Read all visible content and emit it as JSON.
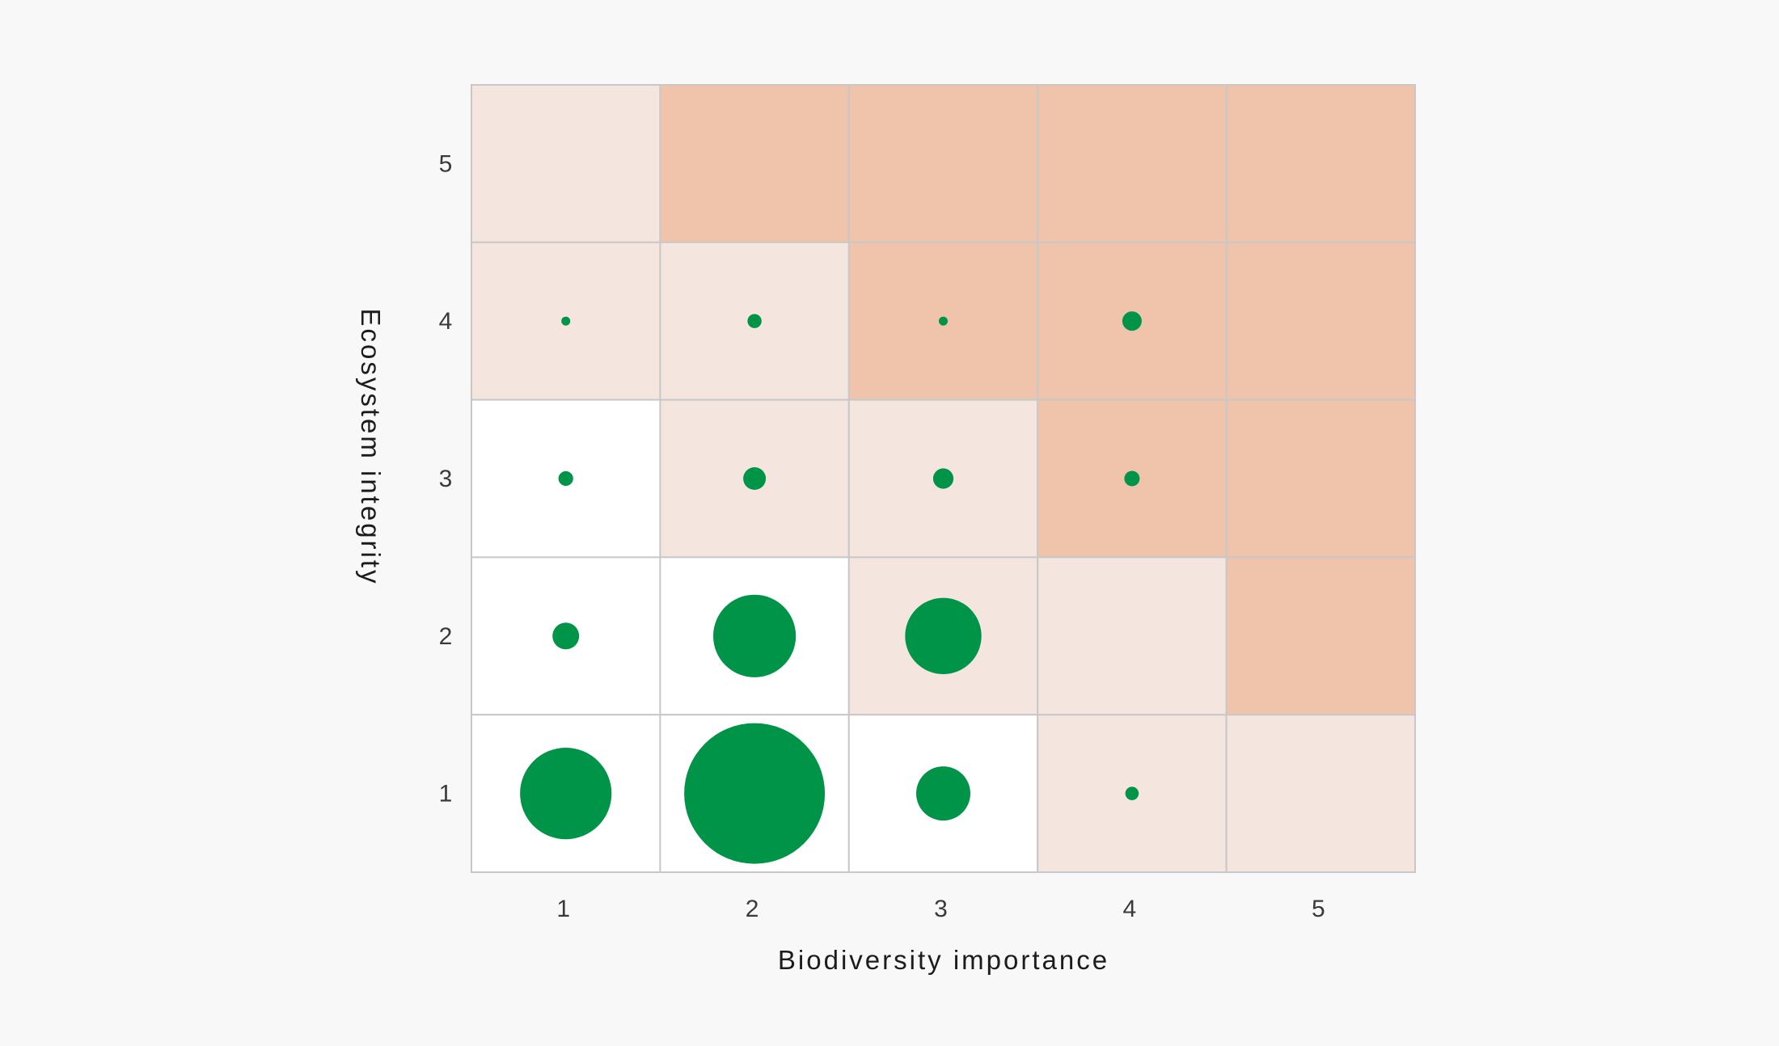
{
  "colors": {
    "background": "#f8f8f8",
    "level_none": "#ffffff",
    "level_low": "#f4e5de",
    "level_high": "#efc4ab",
    "grid_line": "#c8c8c8",
    "bubble": "#009448",
    "tick_text": "#3a3a3a",
    "axis_title_text": "#1c1c1c"
  },
  "chart_data": {
    "type": "heatmap",
    "subtype": "bubble-matrix",
    "title": "",
    "xlabel": "Biodiversity importance",
    "ylabel": "Ecosystem integrity",
    "x_categories": [
      "1",
      "2",
      "3",
      "4",
      "5"
    ],
    "y_categories": [
      "1",
      "2",
      "3",
      "4",
      "5"
    ],
    "cell_color_levels": [
      "none",
      "low",
      "high"
    ],
    "cell_levels_by_row": [
      {
        "y": "5",
        "levels": [
          "low",
          "high",
          "high",
          "high",
          "high"
        ]
      },
      {
        "y": "4",
        "levels": [
          "low",
          "low",
          "high",
          "high",
          "high"
        ]
      },
      {
        "y": "3",
        "levels": [
          "none",
          "low",
          "low",
          "high",
          "high"
        ]
      },
      {
        "y": "2",
        "levels": [
          "none",
          "none",
          "low",
          "low",
          "high"
        ]
      },
      {
        "y": "1",
        "levels": [
          "none",
          "none",
          "none",
          "low",
          "low"
        ]
      }
    ],
    "bubble_value_unit": "relative (largest bubble = 100)",
    "bubbles": [
      {
        "x": "1",
        "y": "4",
        "value": 0.4
      },
      {
        "x": "2",
        "y": "4",
        "value": 1.0
      },
      {
        "x": "3",
        "y": "4",
        "value": 0.4
      },
      {
        "x": "4",
        "y": "4",
        "value": 1.9
      },
      {
        "x": "1",
        "y": "3",
        "value": 1.1
      },
      {
        "x": "2",
        "y": "3",
        "value": 2.6
      },
      {
        "x": "3",
        "y": "3",
        "value": 2.1
      },
      {
        "x": "4",
        "y": "3",
        "value": 1.2
      },
      {
        "x": "1",
        "y": "2",
        "value": 3.6
      },
      {
        "x": "2",
        "y": "2",
        "value": 34.5
      },
      {
        "x": "3",
        "y": "2",
        "value": 29.4
      },
      {
        "x": "1",
        "y": "1",
        "value": 42.3
      },
      {
        "x": "2",
        "y": "1",
        "value": 100
      },
      {
        "x": "3",
        "y": "1",
        "value": 14.8
      },
      {
        "x": "4",
        "y": "1",
        "value": 0.9
      }
    ]
  }
}
